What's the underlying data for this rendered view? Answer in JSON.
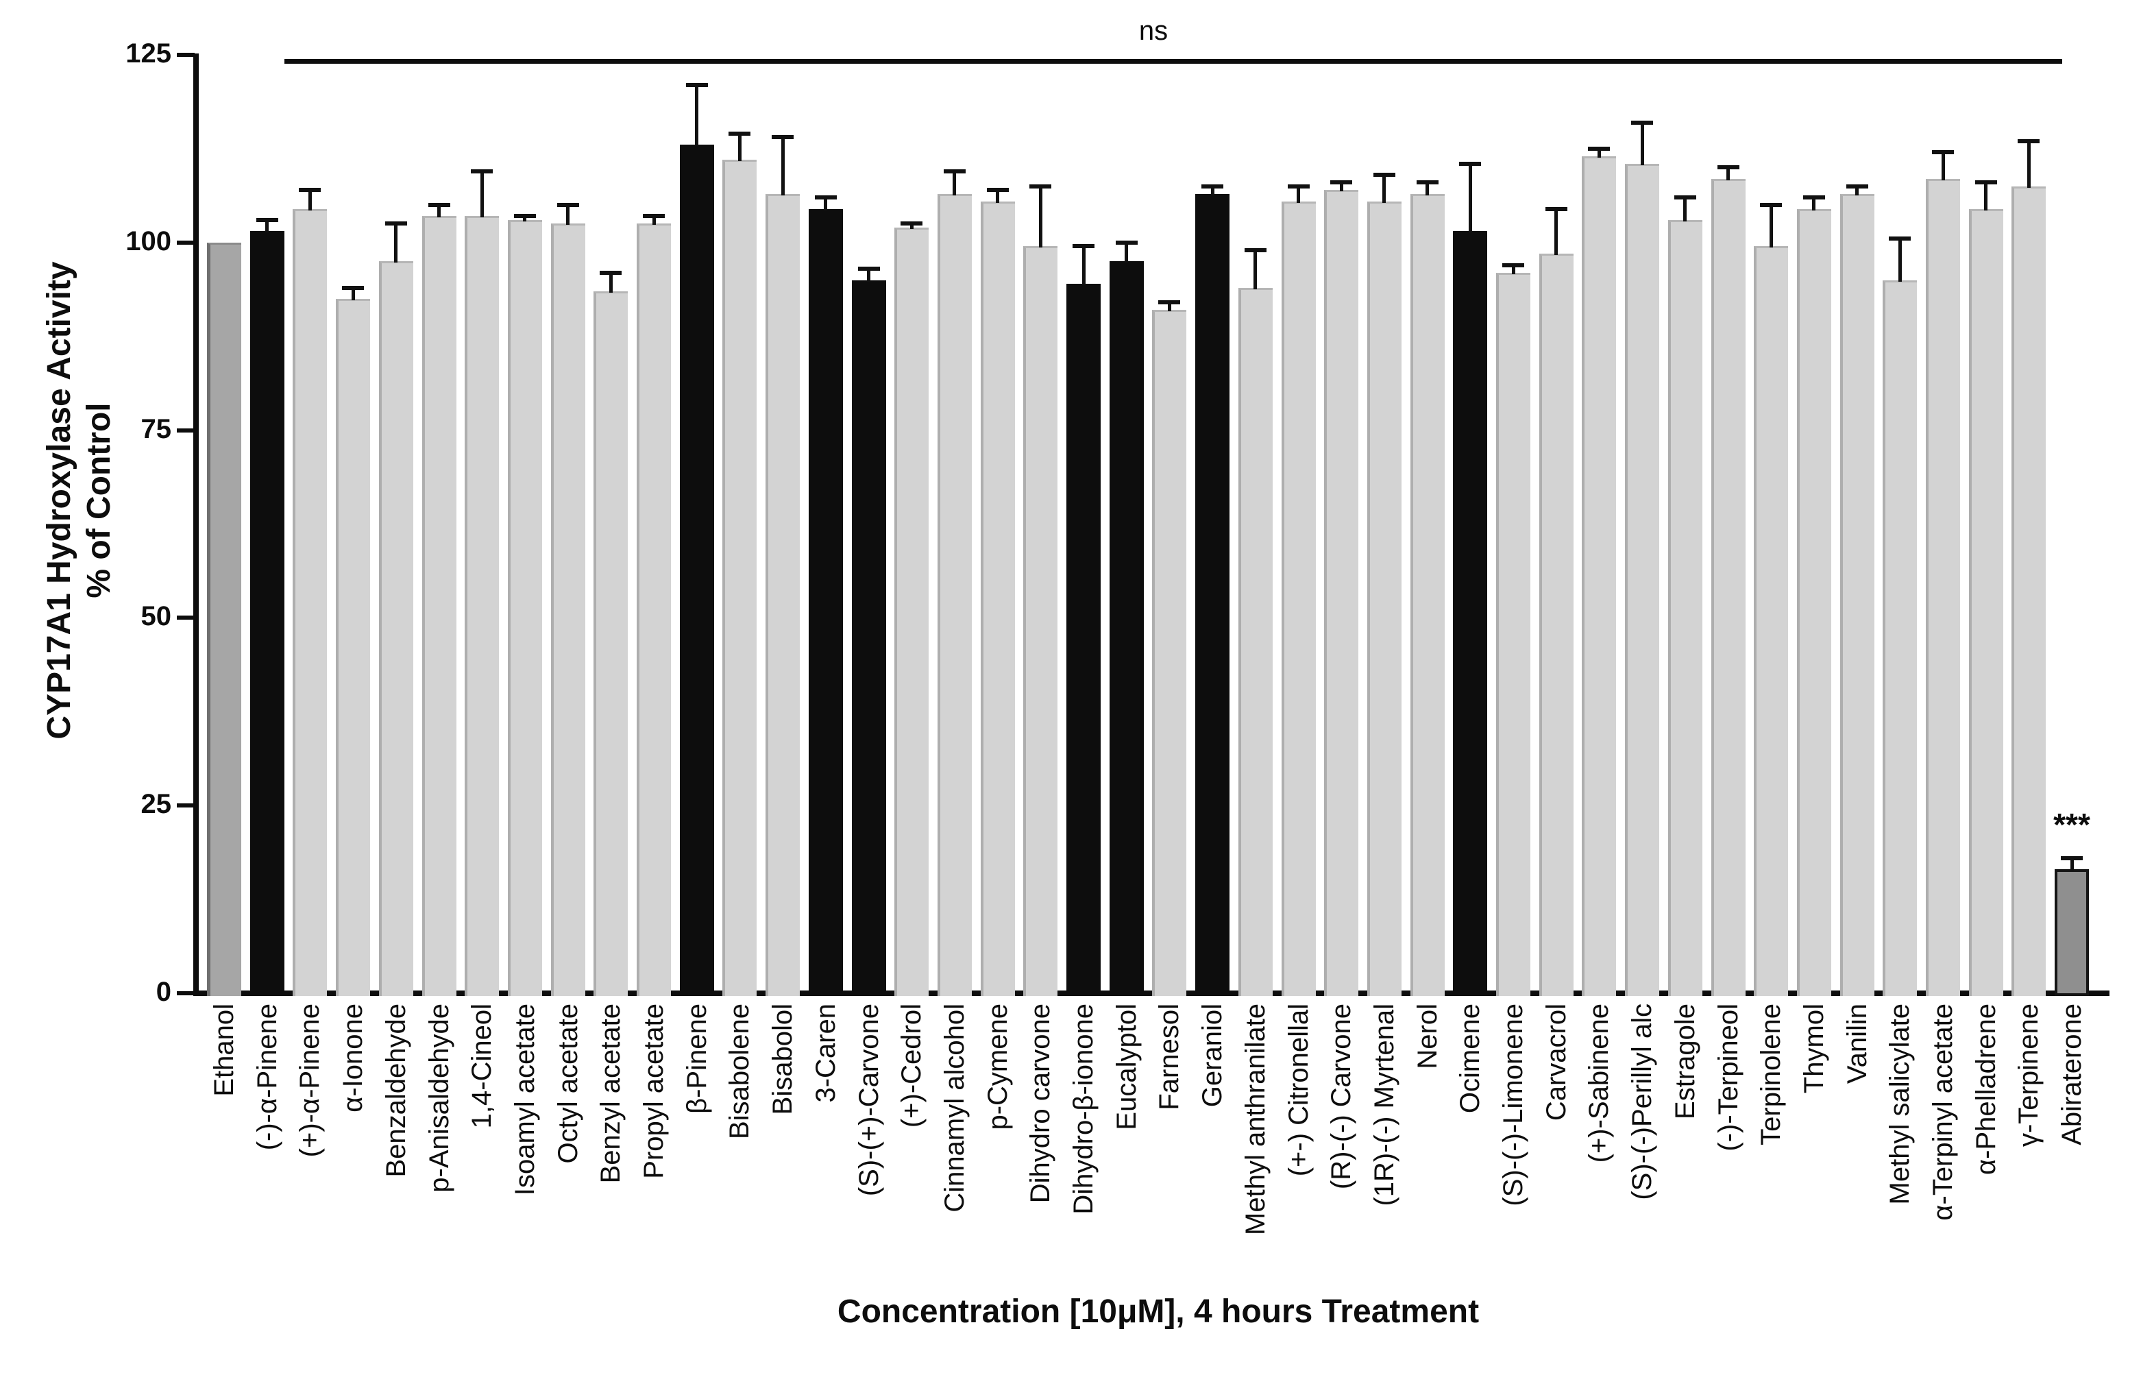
{
  "chart_data": {
    "type": "bar",
    "title": "",
    "xlabel": "Concentration [10μM], 4 hours Treatment",
    "ylabel_line1": "CYP17A1 Hydroxylase Activity",
    "ylabel_line2": "% of Control",
    "ylim": [
      0,
      125
    ],
    "yticks": [
      0,
      25,
      50,
      75,
      100,
      125
    ],
    "grid": false,
    "legend": null,
    "error_bars": "upper only, SD",
    "bar_colors": {
      "control": "#a6a6a6",
      "default": "#d3d3d3",
      "highlight": "#0d0d0d",
      "abiraterone": "#8f8f8f"
    },
    "annotations": {
      "ns_text": "ns",
      "ns_span_from": "(-)-α-Pinene",
      "ns_span_to": "γ-Terpinene",
      "sig_text": "***",
      "sig_on": "Abiraterone"
    },
    "bars": [
      {
        "label": "Ethanol",
        "value": 100,
        "error": 0,
        "role": "control"
      },
      {
        "label": "(-)-α-Pinene",
        "value": 101.5,
        "error": 1.5,
        "role": "highlight"
      },
      {
        "label": "(+)-α-Pinene",
        "value": 104.5,
        "error": 2.5,
        "role": "default"
      },
      {
        "label": "α-Ionone",
        "value": 92.5,
        "error": 1.5,
        "role": "default"
      },
      {
        "label": "Benzaldehyde",
        "value": 97.5,
        "error": 5,
        "role": "default"
      },
      {
        "label": "p-Anisaldehyde",
        "value": 103.5,
        "error": 1.5,
        "role": "default"
      },
      {
        "label": "1,4-Cineol",
        "value": 103.5,
        "error": 6,
        "role": "default"
      },
      {
        "label": "Isoamyl acetate",
        "value": 103,
        "error": 0.5,
        "role": "default"
      },
      {
        "label": "Octyl acetate",
        "value": 102.5,
        "error": 2.5,
        "role": "default"
      },
      {
        "label": "Benzyl acetate",
        "value": 93.5,
        "error": 2.5,
        "role": "default"
      },
      {
        "label": "Propyl acetate",
        "value": 102.5,
        "error": 1,
        "role": "default"
      },
      {
        "label": "β-Pinene",
        "value": 113,
        "error": 8,
        "role": "highlight"
      },
      {
        "label": "Bisabolene",
        "value": 111,
        "error": 3.5,
        "role": "default"
      },
      {
        "label": "Bisabolol",
        "value": 106.5,
        "error": 7.5,
        "role": "default"
      },
      {
        "label": "3-Caren",
        "value": 104.5,
        "error": 1.5,
        "role": "highlight"
      },
      {
        "label": "(S)-(+)-Carvone",
        "value": 95,
        "error": 1.5,
        "role": "highlight"
      },
      {
        "label": "(+)-Cedrol",
        "value": 102,
        "error": 0.5,
        "role": "default"
      },
      {
        "label": "Cinnamyl alcohol",
        "value": 106.5,
        "error": 3,
        "role": "default"
      },
      {
        "label": "p-Cymene",
        "value": 105.5,
        "error": 1.5,
        "role": "default"
      },
      {
        "label": "Dihydro carvone",
        "value": 99.5,
        "error": 8,
        "role": "default"
      },
      {
        "label": "Dihydro-β-ionone",
        "value": 94.5,
        "error": 5,
        "role": "highlight"
      },
      {
        "label": "Eucalyptol",
        "value": 97.5,
        "error": 2.5,
        "role": "highlight"
      },
      {
        "label": "Farnesol",
        "value": 91,
        "error": 1,
        "role": "default"
      },
      {
        "label": "Geraniol",
        "value": 106.5,
        "error": 1,
        "role": "highlight"
      },
      {
        "label": "Methyl anthranilate",
        "value": 94,
        "error": 5,
        "role": "default"
      },
      {
        "label": "(+-) Citronellal",
        "value": 105.5,
        "error": 2,
        "role": "default"
      },
      {
        "label": "(R)-(-) Carvone",
        "value": 107,
        "error": 1,
        "role": "default"
      },
      {
        "label": "(1R)-(-) Myrtenal",
        "value": 105.5,
        "error": 3.5,
        "role": "default"
      },
      {
        "label": "Nerol",
        "value": 106.5,
        "error": 1.5,
        "role": "default"
      },
      {
        "label": "Ocimene",
        "value": 101.5,
        "error": 9,
        "role": "highlight"
      },
      {
        "label": "(S)-(-)-Limonene",
        "value": 96,
        "error": 1,
        "role": "default"
      },
      {
        "label": "Carvacrol",
        "value": 98.5,
        "error": 6,
        "role": "default"
      },
      {
        "label": "(+)-Sabinene",
        "value": 111.5,
        "error": 1,
        "role": "default"
      },
      {
        "label": "(S)-(-)Perillyl alc",
        "value": 110.5,
        "error": 5.5,
        "role": "default"
      },
      {
        "label": "Estragole",
        "value": 103,
        "error": 3,
        "role": "default"
      },
      {
        "label": "(-)-Terpineol",
        "value": 108.5,
        "error": 1.5,
        "role": "default"
      },
      {
        "label": "Terpinolene",
        "value": 99.5,
        "error": 5.5,
        "role": "default"
      },
      {
        "label": "Thymol",
        "value": 104.5,
        "error": 1.5,
        "role": "default"
      },
      {
        "label": "Vanilin",
        "value": 106.5,
        "error": 1,
        "role": "default"
      },
      {
        "label": "Methyl salicylate",
        "value": 95,
        "error": 5.5,
        "role": "default"
      },
      {
        "label": "α-Terpinyl acetate",
        "value": 108.5,
        "error": 3.5,
        "role": "default"
      },
      {
        "label": "α-Phelladrene",
        "value": 104.5,
        "error": 3.5,
        "role": "default"
      },
      {
        "label": "γ-Terpinene",
        "value": 107.5,
        "error": 6,
        "role": "default"
      },
      {
        "label": "Abiraterone",
        "value": 16.5,
        "error": 1.5,
        "role": "abiraterone",
        "significance": "***"
      }
    ]
  }
}
